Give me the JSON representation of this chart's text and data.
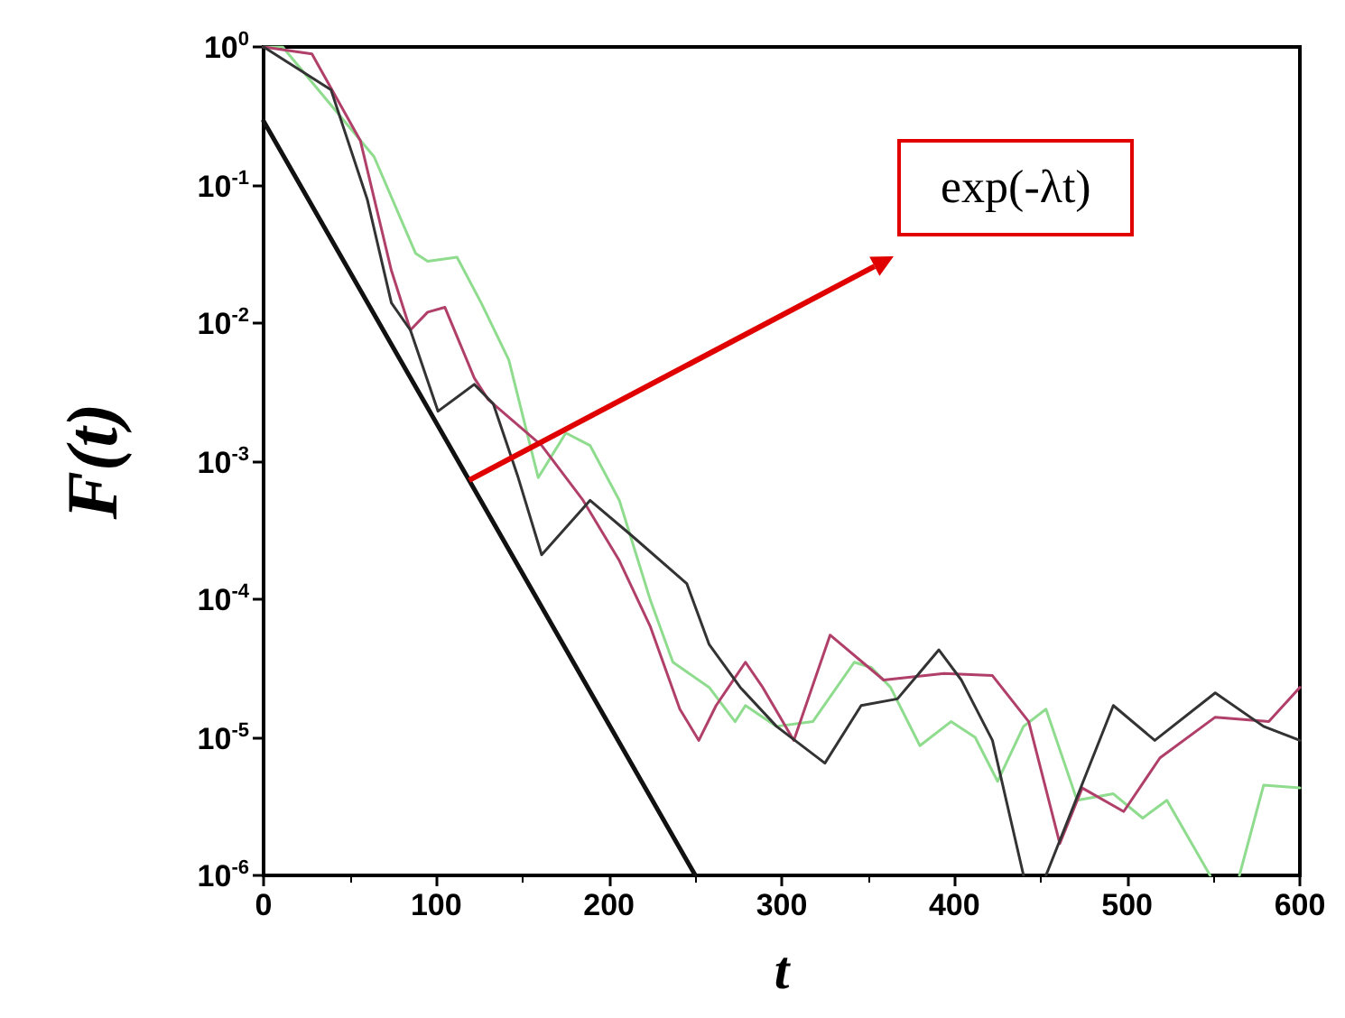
{
  "chart_data": {
    "type": "line",
    "xlabel": "t",
    "ylabel": "F(t)",
    "xlim": [
      0,
      600
    ],
    "xticks": [
      0,
      100,
      200,
      300,
      400,
      500,
      600
    ],
    "ylim": [
      1e-06,
      1
    ],
    "yticks": [
      {
        "value": 1e-06,
        "label": "10$^{-6}$"
      },
      {
        "value": 1e-05,
        "label": "10$^{-5}$"
      },
      {
        "value": 0.0001,
        "label": "10$^{-4}$"
      },
      {
        "value": 0.001,
        "label": "10$^{-3}$"
      },
      {
        "value": 0.01,
        "label": "10$^{-2}$"
      },
      {
        "value": 0.1,
        "label": "10$^{-1}$"
      },
      {
        "value": 1,
        "label": "10$^{0}$"
      }
    ],
    "log": "y",
    "grid": false,
    "marker": "none",
    "line_style": "solid",
    "annotations": [
      "exp(-λt)"
    ],
    "series": [
      {
        "color": "#8fdc8f",
        "x": [
          0,
          11,
          64,
          88,
          95,
          112,
          126,
          142,
          159,
          175,
          189,
          206,
          224,
          237,
          258,
          273,
          279,
          297,
          318,
          342,
          352,
          363,
          380,
          398,
          412,
          425,
          440,
          453,
          471,
          492,
          509,
          523,
          548,
          556,
          565,
          579,
          600
        ],
        "values": [
          1,
          1,
          0.16,
          0.032,
          0.028,
          0.03,
          0.014,
          0.0054,
          0.00076,
          0.0016,
          0.0013,
          0.00052,
          9.8e-05,
          3.5e-05,
          2.3e-05,
          1.3e-05,
          1.7e-05,
          1.2e-05,
          1.3e-05,
          3.5e-05,
          3.2e-05,
          2.3e-05,
          8.7e-06,
          1.3e-05,
          1e-05,
          4.8e-06,
          1.2e-05,
          1.6e-05,
          3.5e-06,
          3.9e-06,
          2.6e-06,
          3.5e-06,
          1e-06,
          null,
          1e-06,
          4.5e-06,
          4.3e-06
        ]
      },
      {
        "color": "#b0406a",
        "x": [
          0,
          28,
          56,
          74,
          85,
          95,
          105,
          122,
          130,
          161,
          185,
          206,
          224,
          241,
          252,
          262,
          279,
          289,
          307,
          328,
          359,
          394,
          422,
          443,
          461,
          474,
          498,
          519,
          551,
          582,
          600
        ],
        "values": [
          1,
          0.89,
          0.21,
          0.024,
          0.0089,
          0.012,
          0.013,
          0.004,
          0.0028,
          0.0013,
          0.00052,
          0.00019,
          6.3e-05,
          1.6e-05,
          9.5e-06,
          1.7e-05,
          3.5e-05,
          2.3e-05,
          9.5e-06,
          5.5e-05,
          2.6e-05,
          2.9e-05,
          2.8e-05,
          1.3e-05,
          1.7e-06,
          4.3e-06,
          2.9e-06,
          7.1e-06,
          1.4e-05,
          1.3e-05,
          2.3e-05
        ]
      },
      {
        "color": "#333333",
        "x": [
          0,
          39,
          60,
          74,
          85,
          101,
          122,
          133,
          147,
          161,
          189,
          213,
          245,
          258,
          276,
          297,
          325,
          346,
          367,
          391,
          404,
          422,
          440,
          446,
          453,
          492,
          516,
          551,
          579,
          600
        ],
        "values": [
          1,
          0.49,
          0.079,
          0.014,
          0.0089,
          0.0023,
          0.0036,
          0.0026,
          0.00079,
          0.00021,
          0.00052,
          0.00029,
          0.00013,
          4.7e-05,
          2.3e-05,
          1.2e-05,
          6.5e-06,
          1.7e-05,
          1.9e-05,
          4.3e-05,
          2.6e-05,
          9.5e-06,
          1e-06,
          null,
          1e-06,
          1.7e-05,
          9.5e-06,
          2.1e-05,
          1.2e-05,
          9.5e-06
        ]
      },
      {
        "color": "#111111",
        "x": [
          0,
          250
        ],
        "values": [
          0.29,
          1e-06
        ]
      }
    ]
  }
}
